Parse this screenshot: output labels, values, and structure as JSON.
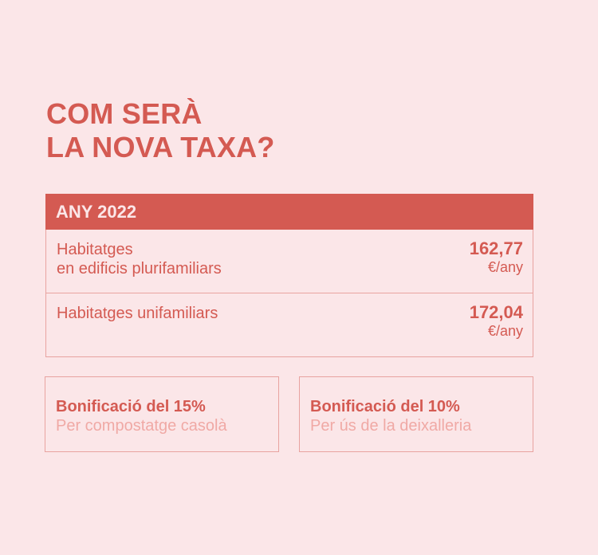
{
  "title": {
    "line1": "COM SERÀ",
    "line2": "LA NOVA TAXA?"
  },
  "table": {
    "header": "ANY 2022",
    "rows": [
      {
        "label_line1": "Habitatges",
        "label_line2": "en edificis plurifamiliars",
        "value": "162,77",
        "unit": "€/any"
      },
      {
        "label_line1": "Habitatges unifamiliars",
        "label_line2": "",
        "value": "172,04",
        "unit": "€/any"
      }
    ]
  },
  "cards": [
    {
      "title": "Bonificació del 15%",
      "subtitle": "Per compostatge casolà"
    },
    {
      "title": "Bonificació del 10%",
      "subtitle": "Per ús de la deixalleria"
    }
  ],
  "colors": {
    "background": "#fbe6e8",
    "accent": "#d45a52",
    "border": "#e8a3a0",
    "muted": "#f0a9a5"
  }
}
